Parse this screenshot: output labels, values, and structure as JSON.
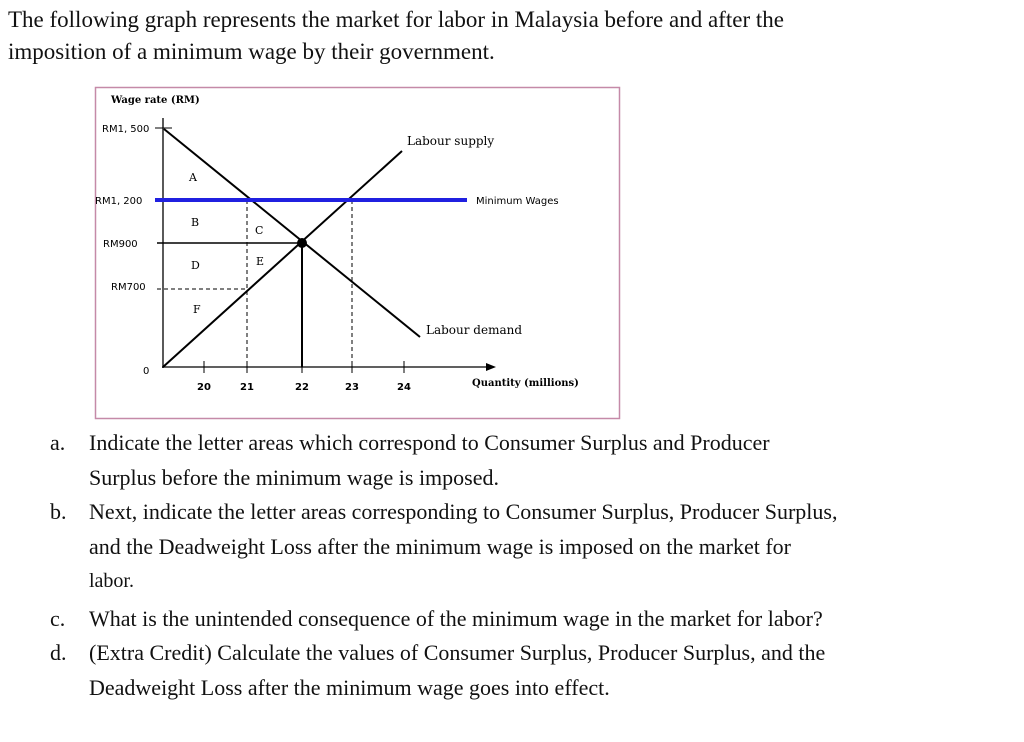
{
  "intro": [
    "The following graph represents the market for labor in Malaysia before and after the",
    "imposition of a minimum wage by their government."
  ],
  "graph": {
    "y_axis_label": "Wage rate (RM)",
    "x_axis_label": "Quantity (millions)",
    "origin_label": "0",
    "wage_labels": [
      "RM1, 500",
      "RM1, 200",
      "RM900",
      "RM700"
    ],
    "quantity_labels": [
      "20",
      "21",
      "22",
      "23",
      "24"
    ],
    "supply_label": "Labour supply",
    "demand_label": "Labour demand",
    "min_wage_label": "Minimum Wages",
    "min_wage_color": "#2020e0",
    "areas": [
      "A",
      "B",
      "C",
      "D",
      "E",
      "F"
    ]
  },
  "questions": [
    {
      "marker": "a.",
      "lines": [
        "Indicate the letter areas which correspond to Consumer Surplus and Producer",
        "Surplus before the minimum wage is imposed."
      ]
    },
    {
      "marker": "b.",
      "lines": [
        "Next, indicate the letter areas corresponding to Consumer Surplus, Producer Surplus,",
        "and the Deadweight Loss after the minimum wage is imposed on the market for",
        "labor."
      ]
    },
    {
      "marker": "c.",
      "lines": [
        "What is the unintended consequence of the minimum wage in the market for labor?"
      ]
    },
    {
      "marker": "d.",
      "lines": [
        "(Extra Credit) Calculate the values of Consumer Surplus, Producer Surplus, and the",
        "Deadweight Loss after the minimum wage goes into effect."
      ]
    }
  ]
}
